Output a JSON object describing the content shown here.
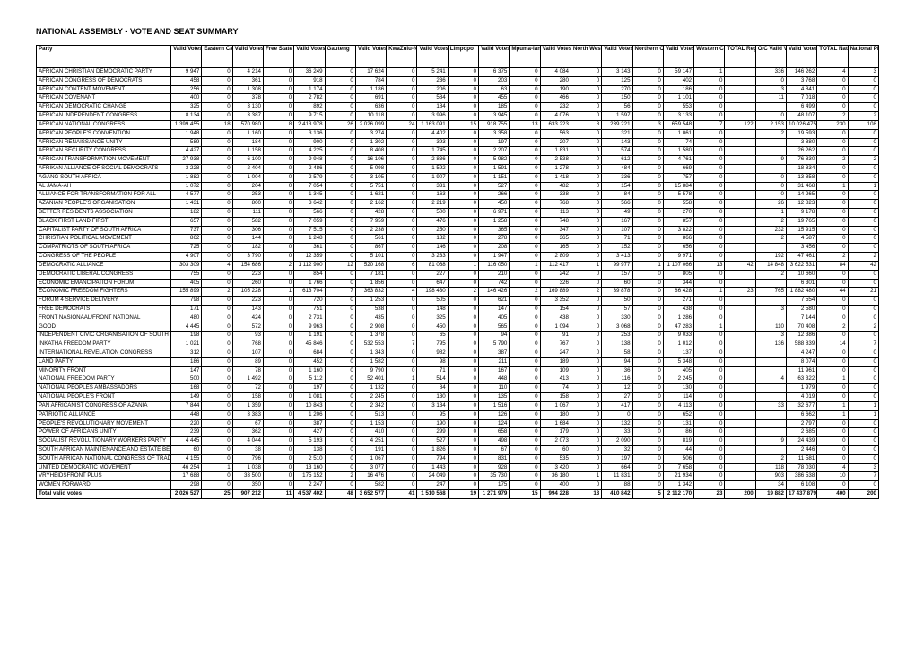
{
  "title": "NATIONAL ASSEMBLY - VOTE AND SEAT SUMMARY",
  "columns": [
    "Party",
    "Valid Votes",
    "Eastern Cape Seats",
    "Valid Votes",
    "Free State",
    "Valid Votes",
    "Gauteng",
    "Valid Votes",
    "KwaZulu-Natal",
    "Valid Votes",
    "Limpopo",
    "Valid Votes",
    "Mpuma-langa",
    "Valid Votes",
    "North West",
    "Valid Votes",
    "Northern Cape",
    "Valid Votes",
    "Western Cape",
    "TOTAL Regional Seats",
    "O/C Valid Votes",
    "Valid Votes National",
    "TOTAL National Seats",
    "National PR list"
  ],
  "rows": [
    [
      "AFRICAN CHRISTIAN DEMOCRATIC PARTY",
      "9 947",
      "0",
      "4 214",
      "0",
      "36 249",
      "0",
      "17 624",
      "0",
      "5 241",
      "0",
      "6 375",
      "0",
      "4 084",
      "0",
      "3 143",
      "0",
      "59 147",
      "1",
      "",
      "336",
      "146 262",
      "4",
      "3"
    ],
    [
      "AFRICAN CONGRESS OF DEMOCRATS",
      "458",
      "0",
      "361",
      "0",
      "918",
      "0",
      "784",
      "0",
      "236",
      "0",
      "203",
      "0",
      "280",
      "0",
      "125",
      "0",
      "402",
      "0",
      "",
      "0",
      "3 768",
      "0",
      "0"
    ],
    [
      "AFRICAN CONTENT MOVEMENT",
      "256",
      "0",
      "1 308",
      "0",
      "1 174",
      "0",
      "1 186",
      "0",
      "206",
      "0",
      "63",
      "0",
      "190",
      "0",
      "270",
      "0",
      "186",
      "0",
      "",
      "3",
      "4 841",
      "0",
      "0"
    ],
    [
      "AFRICAN COVENANT",
      "400",
      "0",
      "378",
      "0",
      "2 782",
      "0",
      "691",
      "0",
      "584",
      "0",
      "455",
      "0",
      "466",
      "0",
      "150",
      "0",
      "1 101",
      "0",
      "",
      "11",
      "7 018",
      "0",
      "0"
    ],
    [
      "AFRICAN DEMOCRATIC CHANGE",
      "325",
      "0",
      "3 130",
      "0",
      "892",
      "0",
      "636",
      "0",
      "184",
      "0",
      "185",
      "0",
      "232",
      "0",
      "56",
      "0",
      "553",
      "0",
      "",
      "",
      "6 499",
      "0",
      "0"
    ],
    [
      "AFRICAN INDEPENDENT CONGRESS",
      "8 134",
      "0",
      "3 387",
      "0",
      "9 715",
      "0",
      "10 118",
      "0",
      "3 996",
      "0",
      "3 945",
      "0",
      "4 076",
      "0",
      "1 597",
      "0",
      "3 133",
      "0",
      "",
      "0",
      "48 107",
      "2",
      "2"
    ],
    [
      "AFRICAN NATIONAL CONGRESS",
      "1 399 455",
      "18",
      "570 980",
      "8",
      "2 413 978",
      "26",
      "2 026 099",
      "24",
      "1 163 091",
      "15",
      "918 755",
      "13",
      "633 223",
      "8",
      "239 221",
      "3",
      "659 548",
      "7",
      "122",
      "2 153",
      "10 026 475",
      "230",
      "108"
    ],
    [
      "AFRICAN PEOPLE'S CONVENTION",
      "1 948",
      "0",
      "1 160",
      "0",
      "3 136",
      "0",
      "3 274",
      "0",
      "4 402",
      "0",
      "3 358",
      "0",
      "563",
      "0",
      "321",
      "0",
      "1 061",
      "0",
      "",
      "2",
      "19 593",
      "0",
      "0"
    ],
    [
      "AFRICAN RENAISSANCE UNITY",
      "589",
      "0",
      "184",
      "0",
      "900",
      "0",
      "1 302",
      "0",
      "393",
      "0",
      "197",
      "0",
      "207",
      "0",
      "143",
      "0",
      "74",
      "0",
      "",
      "",
      "3 880",
      "0",
      "0"
    ],
    [
      "AFRICAN SECURITY CONGRESS",
      "4 427",
      "0",
      "1 158",
      "0",
      "4 225",
      "0",
      "8 408",
      "0",
      "1 745",
      "0",
      "2 207",
      "0",
      "1 831",
      "0",
      "574",
      "0",
      "1 580",
      "0",
      "",
      "",
      "26 262",
      "0",
      "0"
    ],
    [
      "AFRICAN TRANSFORMATION MOVEMENT",
      "27 938",
      "0",
      "6 100",
      "0",
      "9 948",
      "0",
      "16 106",
      "0",
      "2 836",
      "0",
      "5 982",
      "0",
      "2 538",
      "0",
      "612",
      "0",
      "4 761",
      "0",
      "",
      "9",
      "76 830",
      "2",
      "2"
    ],
    [
      "AFRIKAN ALLIANCE OF SOCIAL DEMOCRATS",
      "3 228",
      "0",
      "2 404",
      "0",
      "2 486",
      "0",
      "5 098",
      "0",
      "1 592",
      "0",
      "1 591",
      "0",
      "1 278",
      "0",
      "484",
      "0",
      "669",
      "0",
      "",
      "",
      "18 834",
      "0",
      "0"
    ],
    [
      "AGANG SOUTH AFRICA",
      "1 882",
      "0",
      "1 004",
      "0",
      "2 579",
      "0",
      "3 105",
      "0",
      "1 907",
      "0",
      "1 151",
      "0",
      "1 418",
      "0",
      "336",
      "0",
      "757",
      "0",
      "",
      "0",
      "13 858",
      "0",
      "0"
    ],
    [
      "AL JAMA-AH",
      "1 072",
      "0",
      "204",
      "0",
      "7 054",
      "0",
      "5 751",
      "0",
      "331",
      "0",
      "527",
      "0",
      "482",
      "0",
      "154",
      "0",
      "15 884",
      "0",
      "",
      "0",
      "31 468",
      "1",
      "1"
    ],
    [
      "ALLIANCE FOR TRANSFORMATION FOR ALL",
      "4 577",
      "0",
      "253",
      "0",
      "1 345",
      "0",
      "1 621",
      "0",
      "163",
      "0",
      "266",
      "0",
      "338",
      "0",
      "84",
      "0",
      "5 578",
      "0",
      "",
      "0",
      "14 265",
      "0",
      "0"
    ],
    [
      "AZANIAN PEOPLE'S ORGANISATION",
      "1 431",
      "0",
      "800",
      "0",
      "3 642",
      "0",
      "2 162",
      "0",
      "2 219",
      "0",
      "450",
      "0",
      "768",
      "0",
      "566",
      "0",
      "558",
      "0",
      "",
      "26",
      "12 823",
      "0",
      "0"
    ],
    [
      "BETTER RESIDENTS ASSOCIATION",
      "182",
      "0",
      "111",
      "0",
      "566",
      "0",
      "428",
      "0",
      "500",
      "0",
      "6 971",
      "0",
      "113",
      "0",
      "49",
      "0",
      "270",
      "0",
      "",
      "1",
      "9 178",
      "0",
      "0"
    ],
    [
      "BLACK FIRST LAND FIRST",
      "657",
      "0",
      "582",
      "0",
      "7 059",
      "0",
      "7 959",
      "0",
      "476",
      "0",
      "1 258",
      "0",
      "748",
      "0",
      "167",
      "0",
      "857",
      "0",
      "",
      "2",
      "19 765",
      "0",
      "0"
    ],
    [
      "CAPITALIST PARTY OF SOUTH AFRICA",
      "737",
      "0",
      "306",
      "0",
      "7 515",
      "0",
      "2 238",
      "0",
      "250",
      "0",
      "365",
      "0",
      "347",
      "0",
      "107",
      "0",
      "3 822",
      "0",
      "",
      "232",
      "15 915",
      "0",
      "0"
    ],
    [
      "CHRISTIAN POLITICAL MOVEMENT",
      "862",
      "0",
      "144",
      "0",
      "1 248",
      "0",
      "561",
      "0",
      "182",
      "0",
      "278",
      "0",
      "365",
      "0",
      "71",
      "0",
      "866",
      "0",
      "",
      "2",
      "4 587",
      "0",
      "0"
    ],
    [
      "COMPATRIOTS OF SOUTH AFRICA",
      "725",
      "0",
      "182",
      "0",
      "361",
      "0",
      "867",
      "0",
      "146",
      "0",
      "208",
      "0",
      "165",
      "0",
      "152",
      "0",
      "656",
      "0",
      "",
      "",
      "3 456",
      "0",
      "0"
    ],
    [
      "CONGRESS OF THE PEOPLE",
      "4 907",
      "0",
      "3 790",
      "0",
      "12 359",
      "0",
      "5 101",
      "0",
      "3 233",
      "0",
      "1 947",
      "0",
      "2 809",
      "0",
      "3 413",
      "0",
      "9 971",
      "0",
      "",
      "192",
      "47 461",
      "2",
      "2"
    ],
    [
      "DEMOCRATIC ALLIANCE",
      "303 309",
      "4",
      "154 686",
      "2",
      "1 112 900",
      "12",
      "520 168",
      "6",
      "81 068",
      "1",
      "116 050",
      "1",
      "112 417",
      "1",
      "99 977",
      "1",
      "1 107 066",
      "13",
      "42",
      "14 848",
      "3 622 531",
      "84",
      "42"
    ],
    [
      "DEMOCRATIC LIBERAL CONGRESS",
      "755",
      "0",
      "223",
      "0",
      "854",
      "0",
      "7 181",
      "0",
      "227",
      "0",
      "210",
      "0",
      "242",
      "0",
      "157",
      "0",
      "805",
      "0",
      "",
      "2",
      "10 660",
      "0",
      "0"
    ],
    [
      "ECONOMIC EMANCIPATION FORUM",
      "405",
      "0",
      "260",
      "0",
      "1 766",
      "0",
      "1 856",
      "0",
      "647",
      "0",
      "742",
      "0",
      "326",
      "0",
      "60",
      "0",
      "344",
      "0",
      "",
      "",
      "6 301",
      "0",
      "0"
    ],
    [
      "ECONOMIC FREEDOM FIGHTERS",
      "155 899",
      "2",
      "105 228",
      "1",
      "613 704",
      "7",
      "363 832",
      "4",
      "198 430",
      "2",
      "146 426",
      "2",
      "169 889",
      "2",
      "39 878",
      "0",
      "86 428",
      "1",
      "23",
      "765",
      "1 882 480",
      "44",
      "21"
    ],
    [
      "FORUM 4 SERVICE DELIVERY",
      "798",
      "0",
      "223",
      "0",
      "720",
      "0",
      "1 253",
      "0",
      "505",
      "0",
      "621",
      "0",
      "3 352",
      "0",
      "50",
      "0",
      "271",
      "0",
      "",
      "",
      "7 554",
      "0",
      "0"
    ],
    [
      "FREE DEMOCRATS",
      "171",
      "0",
      "143",
      "0",
      "751",
      "0",
      "538",
      "0",
      "148",
      "0",
      "147",
      "0",
      "154",
      "0",
      "57",
      "0",
      "438",
      "0",
      "",
      "3",
      "2 580",
      "0",
      "0"
    ],
    [
      "FRONT NASIONAAL/FRONT NATIONAL",
      "480",
      "0",
      "424",
      "0",
      "2 731",
      "0",
      "435",
      "0",
      "325",
      "0",
      "405",
      "0",
      "438",
      "0",
      "330",
      "0",
      "1 286",
      "0",
      "",
      "",
      "7 144",
      "0",
      "0"
    ],
    [
      "GOOD",
      "4 445",
      "0",
      "572",
      "0",
      "9 963",
      "0",
      "2 908",
      "0",
      "450",
      "0",
      "565",
      "0",
      "1 094",
      "0",
      "3 068",
      "0",
      "47 283",
      "1",
      "",
      "110",
      "70 408",
      "2",
      "2"
    ],
    [
      "INDEPENDENT CIVIC ORGANISATION OF SOUTH AFRICA",
      "198",
      "0",
      "93",
      "0",
      "1 191",
      "0",
      "1 378",
      "0",
      "65",
      "0",
      "94",
      "0",
      "91",
      "0",
      "253",
      "0",
      "9 033",
      "0",
      "",
      "3",
      "12 386",
      "0",
      "0"
    ],
    [
      "INKATHA FREEDOM PARTY",
      "1 021",
      "0",
      "768",
      "0",
      "45 846",
      "0",
      "532 553",
      "7",
      "795",
      "0",
      "5 790",
      "0",
      "767",
      "0",
      "138",
      "0",
      "1 012",
      "0",
      "",
      "136",
      "588 839",
      "14",
      "7"
    ],
    [
      "INTERNATIONAL REVELATION CONGRESS",
      "312",
      "0",
      "107",
      "0",
      "684",
      "0",
      "1 343",
      "0",
      "982",
      "0",
      "387",
      "0",
      "247",
      "0",
      "58",
      "0",
      "137",
      "0",
      "",
      "",
      "4 247",
      "0",
      "0"
    ],
    [
      "LAND PARTY",
      "186",
      "0",
      "89",
      "0",
      "452",
      "0",
      "1 582",
      "0",
      "98",
      "0",
      "211",
      "0",
      "189",
      "0",
      "94",
      "0",
      "5 348",
      "0",
      "",
      "",
      "8 074",
      "0",
      "0"
    ],
    [
      "MINORITY FRONT",
      "147",
      "0",
      "78",
      "0",
      "1 160",
      "0",
      "9 790",
      "0",
      "71",
      "0",
      "167",
      "0",
      "109",
      "0",
      "36",
      "0",
      "405",
      "0",
      "",
      "",
      "11 961",
      "0",
      "0"
    ],
    [
      "NATIONAL FREEDOM PARTY",
      "500",
      "0",
      "1 492",
      "0",
      "5 112",
      "0",
      "52 401",
      "1",
      "514",
      "0",
      "448",
      "0",
      "413",
      "0",
      "116",
      "0",
      "2 245",
      "0",
      "",
      "4",
      "63 322",
      "1",
      "0"
    ],
    [
      "NATIONAL PEOPLES AMBASSADORS",
      "168",
      "0",
      "72",
      "0",
      "197",
      "0",
      "1 132",
      "0",
      "84",
      "0",
      "110",
      "0",
      "74",
      "0",
      "12",
      "0",
      "130",
      "0",
      "",
      "",
      "1 979",
      "0",
      "0"
    ],
    [
      "NATIONAL PEOPLE'S FRONT",
      "149",
      "0",
      "158",
      "0",
      "1 081",
      "0",
      "2 245",
      "0",
      "130",
      "0",
      "135",
      "0",
      "158",
      "0",
      "27",
      "0",
      "114",
      "0",
      "",
      "",
      "4 019",
      "0",
      "0"
    ],
    [
      "PAN AFRICANIST CONGRESS OF AZANIA",
      "7 844",
      "0",
      "1 359",
      "0",
      "10 843",
      "0",
      "2 342",
      "0",
      "3 134",
      "0",
      "1 516",
      "0",
      "1 067",
      "0",
      "417",
      "0",
      "4 113",
      "0",
      "",
      "33",
      "32 677",
      "1",
      "1"
    ],
    [
      "PATRIOTIC ALLIANCE",
      "448",
      "0",
      "3 383",
      "0",
      "1 206",
      "0",
      "513",
      "0",
      "95",
      "0",
      "126",
      "0",
      "180",
      "0",
      "0",
      "0",
      "652",
      "0",
      "",
      "",
      "6 662",
      "1",
      "1"
    ],
    [
      "PEOPLE'S REVOLUTIONARY MOVEMENT",
      "220",
      "0",
      "67",
      "0",
      "387",
      "0",
      "1 153",
      "0",
      "190",
      "0",
      "124",
      "0",
      "1 684",
      "0",
      "132",
      "0",
      "131",
      "0",
      "",
      "",
      "2 797",
      "0",
      "0"
    ],
    [
      "POWER OF AFRICANS UNITY",
      "239",
      "0",
      "362",
      "0",
      "427",
      "0",
      "410",
      "0",
      "299",
      "0",
      "658",
      "0",
      "179",
      "0",
      "33",
      "0",
      "86",
      "0",
      "",
      "",
      "2 685",
      "0",
      "0"
    ],
    [
      "SOCIALIST REVOLUTIONARY WORKERS PARTY",
      "4 445",
      "0",
      "4 044",
      "0",
      "5 193",
      "0",
      "4 251",
      "0",
      "527",
      "0",
      "498",
      "0",
      "2 073",
      "0",
      "2 090",
      "0",
      "819",
      "0",
      "",
      "9",
      "24 439",
      "0",
      "0"
    ],
    [
      "SOUTH AFRICAN MAINTENANCE AND ESTATE BENEFICIARIES",
      "60",
      "0",
      "38",
      "0",
      "138",
      "0",
      "191",
      "0",
      "1 826",
      "0",
      "67",
      "0",
      "60",
      "0",
      "32",
      "0",
      "44",
      "0",
      "",
      "",
      "2 446",
      "0",
      "0"
    ],
    [
      "SOUTH AFRICAN NATIONAL CONGRESS OF TRADITIONAL AUTHORITIES",
      "4 155",
      "0",
      "796",
      "0",
      "2 510",
      "0",
      "1 067",
      "0",
      "794",
      "0",
      "831",
      "0",
      "535",
      "0",
      "197",
      "0",
      "506",
      "0",
      "",
      "2",
      "11 581",
      "0",
      "0"
    ],
    [
      "UNITED DEMOCRATIC MOVEMENT",
      "46 254",
      "1",
      "1 038",
      "0",
      "13 160",
      "0",
      "3 077",
      "0",
      "1 443",
      "0",
      "928",
      "0",
      "3 420",
      "0",
      "664",
      "0",
      "7 658",
      "0",
      "",
      "118",
      "78 030",
      "4",
      "3"
    ],
    [
      "VRYHEIDSFRONT PLUS",
      "17 688",
      "0",
      "33 500",
      "0",
      "175 152",
      "2",
      "16 476",
      "0",
      "24 049",
      "0",
      "35 730",
      "0",
      "36 180",
      "1",
      "11 831",
      "0",
      "21 934",
      "0",
      "",
      "903",
      "386 538",
      "10",
      "7"
    ],
    [
      "WOMEN FORWARD",
      "298",
      "0",
      "350",
      "0",
      "2 247",
      "0",
      "582",
      "0",
      "247",
      "0",
      "175",
      "0",
      "400",
      "0",
      "88",
      "0",
      "1 342",
      "0",
      "",
      "34",
      "6 108",
      "0",
      "0"
    ],
    [
      "Total valid votes",
      "2 026 527",
      "25",
      "907 212",
      "11",
      "4 537 402",
      "48",
      "3 652 577",
      "41",
      "1 510 568",
      "19",
      "1 271 979",
      "15",
      "994 228",
      "13",
      "410 842",
      "5",
      "2 112 170",
      "23",
      "200",
      "19 882",
      "17 437 879",
      "400",
      "200"
    ]
  ],
  "table_borders": "#000000",
  "background": "#ffffff"
}
